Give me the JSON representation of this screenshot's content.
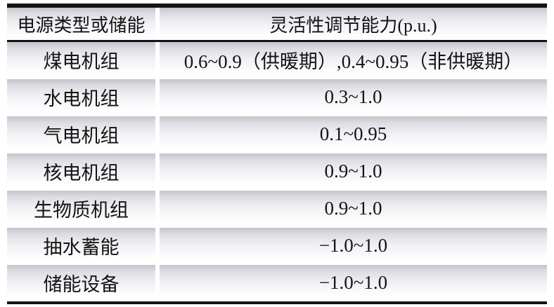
{
  "chart_data": {
    "type": "table",
    "columns": [
      "电源类型或储能",
      "灵活性调节能力(p.u.)"
    ],
    "rows": [
      [
        "煤电机组",
        "0.6~0.9（供暖期）,0.4~0.95（非供暖期）"
      ],
      [
        "水电机组",
        "0.3~1.0"
      ],
      [
        "气电机组",
        "0.1~0.95"
      ],
      [
        "核电机组",
        "0.9~1.0"
      ],
      [
        "生物质机组",
        "0.9~1.0"
      ],
      [
        "抽水蓄能",
        "−1.0~1.0"
      ],
      [
        "储能设备",
        "−1.0~1.0"
      ]
    ],
    "layout_hints": {
      "style": "three-line table with beveled gradient rows",
      "column_text_align": "center"
    },
    "colors": {
      "rule_black": "#141414",
      "row_gradient_top": "#c4c4cc",
      "row_gradient_bottom": "#ffffff",
      "row_gap": "#ffffff",
      "text": "#141414",
      "page_background": "#ffffff"
    }
  }
}
